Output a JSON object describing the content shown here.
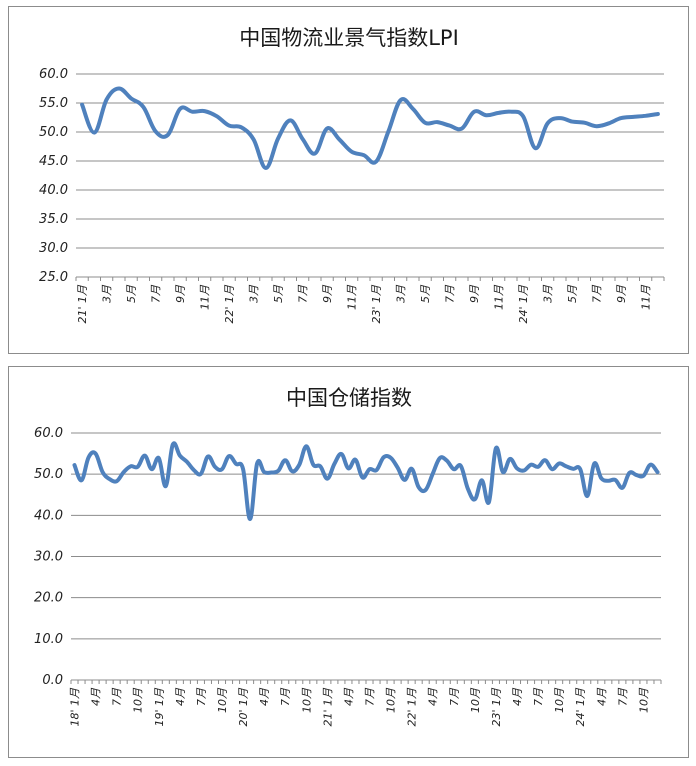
{
  "colors": {
    "series": "#4f81bd",
    "grid": "#8c8c8c"
  },
  "chart_data": [
    {
      "type": "line",
      "title": "中国物流业景气指数LPI",
      "ylim": [
        25,
        60
      ],
      "yticks": [
        "25.0",
        "30.0",
        "35.0",
        "40.0",
        "45.0",
        "50.0",
        "55.0",
        "60.0"
      ],
      "grid": true,
      "x": [
        "21'1月",
        "21'2月",
        "21'3月",
        "21'4月",
        "21'5月",
        "21'6月",
        "21'7月",
        "21'8月",
        "21'9月",
        "21'10月",
        "21'11月",
        "21'12月",
        "22'1月",
        "22'2月",
        "22'3月",
        "22'4月",
        "22'5月",
        "22'6月",
        "22'7月",
        "22'8月",
        "22'9月",
        "22'10月",
        "22'11月",
        "22'12月",
        "23'1月",
        "23'2月",
        "23'3月",
        "23'4月",
        "23'5月",
        "23'6月",
        "23'7月",
        "23'8月",
        "23'9月",
        "23'10月",
        "23'11月",
        "23'12月",
        "24'1月",
        "24'2月",
        "24'3月",
        "24'4月",
        "24'5月",
        "24'6月",
        "24'7月",
        "24'8月",
        "24'9月",
        "24'10月",
        "24'11月",
        "24'12月"
      ],
      "xtick_labels": [
        "21' 1月",
        "3月",
        "5月",
        "7月",
        "9月",
        "11月",
        "22' 1月",
        "3月",
        "5月",
        "7月",
        "9月",
        "11月",
        "23' 1月",
        "3月",
        "5月",
        "7月",
        "9月",
        "11月",
        "24' 1月",
        "3月",
        "5月",
        "7月",
        "9月",
        "11月"
      ],
      "values": [
        54.7,
        49.9,
        55.6,
        57.5,
        55.8,
        54.3,
        50.1,
        49.5,
        54.0,
        53.5,
        53.6,
        52.7,
        51.1,
        50.8,
        48.7,
        43.8,
        48.9,
        52.0,
        48.8,
        46.3,
        50.6,
        48.7,
        46.6,
        46.0,
        44.9,
        50.1,
        55.5,
        54.0,
        51.6,
        51.7,
        51.1,
        50.6,
        53.5,
        52.9,
        53.3,
        53.5,
        52.7,
        47.2,
        51.5,
        52.4,
        51.8,
        51.6,
        51.0,
        51.5,
        52.4,
        52.6,
        52.8,
        53.1
      ]
    },
    {
      "type": "line",
      "title": "中国仓储指数",
      "ylim": [
        0,
        60
      ],
      "yticks": [
        "0.0",
        "10.0",
        "20.0",
        "30.0",
        "40.0",
        "50.0",
        "60.0"
      ],
      "grid": true,
      "x": [
        "18'1月",
        "18'2月",
        "18'3月",
        "18'4月",
        "18'5月",
        "18'6月",
        "18'7月",
        "18'8月",
        "18'9月",
        "18'10月",
        "18'11月",
        "18'12月",
        "19'1月",
        "19'2月",
        "19'3月",
        "19'4月",
        "19'5月",
        "19'6月",
        "19'7月",
        "19'8月",
        "19'9月",
        "19'10月",
        "19'11月",
        "19'12月",
        "20'1月",
        "20'2月",
        "20'3月",
        "20'4月",
        "20'5月",
        "20'6月",
        "20'7月",
        "20'8月",
        "20'9月",
        "20'10月",
        "20'11月",
        "20'12月",
        "21'1月",
        "21'2月",
        "21'3月",
        "21'4月",
        "21'5月",
        "21'6月",
        "21'7月",
        "21'8月",
        "21'9月",
        "21'10月",
        "21'11月",
        "21'12月",
        "22'1月",
        "22'2月",
        "22'3月",
        "22'4月",
        "22'5月",
        "22'6月",
        "22'7月",
        "22'8月",
        "22'9月",
        "22'10月",
        "22'11月",
        "22'12月",
        "23'1月",
        "23'2月",
        "23'3月",
        "23'4月",
        "23'5月",
        "23'6月",
        "23'7月",
        "23'8月",
        "23'9月",
        "23'10月",
        "23'11月",
        "23'12月",
        "24'1月",
        "24'2月",
        "24'3月",
        "24'4月",
        "24'5月",
        "24'6月",
        "24'7月",
        "24'8月",
        "24'9月",
        "24'10月",
        "24'11月",
        "24'12月"
      ],
      "xtick_labels": [
        "18' 1月",
        "4月",
        "7月",
        "10月",
        "19' 1月",
        "4月",
        "7月",
        "10月",
        "20' 1月",
        "4月",
        "7月",
        "10月",
        "21' 1月",
        "4月",
        "7月",
        "10月",
        "22' 1月",
        "4月",
        "7月",
        "10月",
        "23' 1月",
        "4月",
        "7月",
        "10月",
        "24' 1月",
        "4月",
        "7月",
        "10月"
      ],
      "values": [
        52.2,
        48.5,
        54.1,
        55.0,
        50.5,
        48.8,
        48.3,
        50.5,
        51.9,
        51.8,
        54.5,
        51.2,
        53.9,
        47.1,
        57.2,
        54.5,
        53.0,
        51.0,
        50.1,
        54.3,
        51.8,
        51.2,
        54.4,
        52.5,
        51.2,
        39.1,
        52.6,
        50.5,
        50.4,
        50.8,
        53.4,
        50.7,
        52.3,
        56.8,
        52.3,
        51.9,
        48.9,
        52.5,
        54.9,
        51.4,
        53.5,
        49.2,
        51.2,
        51.0,
        54.1,
        54.0,
        51.6,
        48.6,
        51.3,
        46.8,
        46.2,
        50.1,
        53.9,
        53.3,
        51.2,
        52.0,
        46.5,
        43.9,
        48.5,
        43.2,
        56.3,
        50.5,
        53.7,
        51.4,
        50.9,
        52.3,
        51.8,
        53.4,
        51.2,
        52.6,
        51.9,
        51.3,
        51.2,
        44.7,
        52.6,
        49.0,
        48.4,
        48.6,
        46.7,
        50.3,
        49.8,
        49.6,
        52.3,
        50.5
      ]
    }
  ]
}
